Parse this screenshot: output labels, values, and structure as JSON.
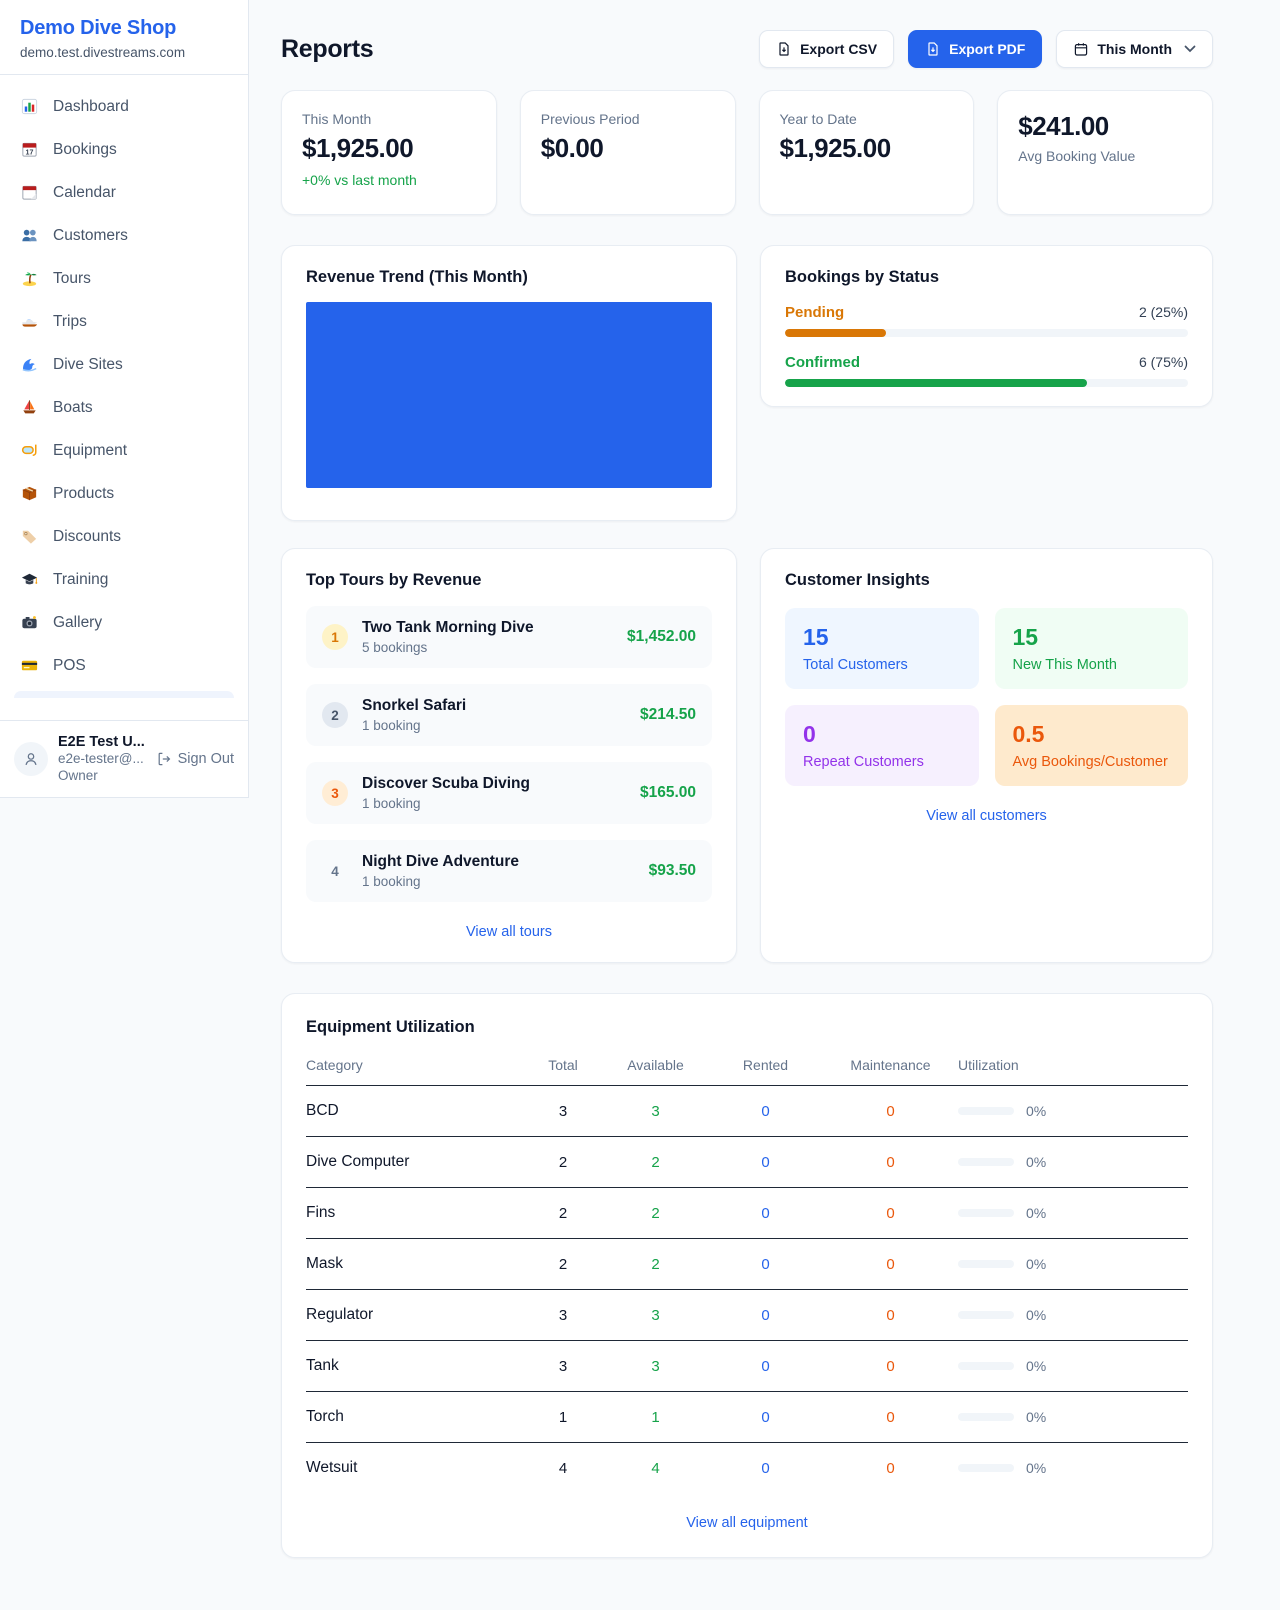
{
  "colors": {
    "accent_blue": "#2563eb",
    "green": "#16a34a",
    "amber": "#d97706",
    "deep_orange": "#ea580c",
    "purple": "#9333ea",
    "page_bg": "#f8fafc"
  },
  "sidebar": {
    "brand": {
      "name": "Demo Dive Shop",
      "domain": "demo.test.divestreams.com"
    },
    "nav": [
      {
        "label": "Dashboard"
      },
      {
        "label": "Bookings"
      },
      {
        "label": "Calendar"
      },
      {
        "label": "Customers"
      },
      {
        "label": "Tours"
      },
      {
        "label": "Trips"
      },
      {
        "label": "Dive Sites"
      },
      {
        "label": "Boats"
      },
      {
        "label": "Equipment"
      },
      {
        "label": "Products"
      },
      {
        "label": "Discounts"
      },
      {
        "label": "Training"
      },
      {
        "label": "Gallery"
      },
      {
        "label": "POS"
      }
    ],
    "user": {
      "name": "E2E Test U...",
      "email": "e2e-tester@...",
      "role": "Owner",
      "sign_out": "Sign Out"
    }
  },
  "header": {
    "title": "Reports",
    "export_csv": "Export CSV",
    "export_pdf": "Export PDF",
    "period": "This Month"
  },
  "stats": [
    {
      "label": "This Month",
      "value": "$1,925.00",
      "delta": "+0% vs last month"
    },
    {
      "label": "Previous Period",
      "value": "$0.00"
    },
    {
      "label": "Year to Date",
      "value": "$1,925.00"
    },
    {
      "label": "Avg Booking Value",
      "value": "$241.00"
    }
  ],
  "revenue_trend": {
    "title": "Revenue Trend (This Month)",
    "bar_pct": 100
  },
  "bookings_by_status": {
    "title": "Bookings by Status",
    "rows": [
      {
        "label": "Pending",
        "value": "2 (25%)",
        "pct": 25
      },
      {
        "label": "Confirmed",
        "value": "6 (75%)",
        "pct": 75
      }
    ]
  },
  "top_tours": {
    "title": "Top Tours by Revenue",
    "items": [
      {
        "rank": "1",
        "name": "Two Tank Morning Dive",
        "bookings": "5 bookings",
        "revenue": "$1,452.00"
      },
      {
        "rank": "2",
        "name": "Snorkel Safari",
        "bookings": "1 booking",
        "revenue": "$214.50"
      },
      {
        "rank": "3",
        "name": "Discover Scuba Diving",
        "bookings": "1 booking",
        "revenue": "$165.00"
      },
      {
        "rank": "4",
        "name": "Night Dive Adventure",
        "bookings": "1 booking",
        "revenue": "$93.50"
      }
    ],
    "view_all": "View all tours"
  },
  "customer_insights": {
    "title": "Customer Insights",
    "tiles": [
      {
        "value": "15",
        "label": "Total Customers"
      },
      {
        "value": "15",
        "label": "New This Month"
      },
      {
        "value": "0",
        "label": "Repeat Customers"
      },
      {
        "value": "0.5",
        "label": "Avg Bookings/Customer"
      }
    ],
    "view_all": "View all customers"
  },
  "equipment": {
    "title": "Equipment Utilization",
    "columns": [
      "Category",
      "Total",
      "Available",
      "Rented",
      "Maintenance",
      "Utilization"
    ],
    "rows": [
      {
        "category": "BCD",
        "total": "3",
        "available": "3",
        "rented": "0",
        "maintenance": "0",
        "utilization": "0%",
        "pct": 0
      },
      {
        "category": "Dive Computer",
        "total": "2",
        "available": "2",
        "rented": "0",
        "maintenance": "0",
        "utilization": "0%",
        "pct": 0
      },
      {
        "category": "Fins",
        "total": "2",
        "available": "2",
        "rented": "0",
        "maintenance": "0",
        "utilization": "0%",
        "pct": 0
      },
      {
        "category": "Mask",
        "total": "2",
        "available": "2",
        "rented": "0",
        "maintenance": "0",
        "utilization": "0%",
        "pct": 0
      },
      {
        "category": "Regulator",
        "total": "3",
        "available": "3",
        "rented": "0",
        "maintenance": "0",
        "utilization": "0%",
        "pct": 0
      },
      {
        "category": "Tank",
        "total": "3",
        "available": "3",
        "rented": "0",
        "maintenance": "0",
        "utilization": "0%",
        "pct": 0
      },
      {
        "category": "Torch",
        "total": "1",
        "available": "1",
        "rented": "0",
        "maintenance": "0",
        "utilization": "0%",
        "pct": 0
      },
      {
        "category": "Wetsuit",
        "total": "4",
        "available": "4",
        "rented": "0",
        "maintenance": "0",
        "utilization": "0%",
        "pct": 0
      }
    ],
    "view_all": "View all equipment"
  }
}
